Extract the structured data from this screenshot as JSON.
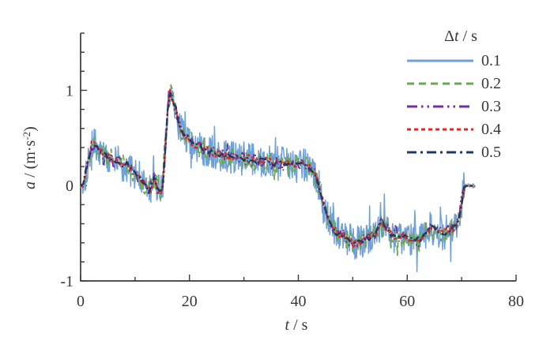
{
  "figure": {
    "background": "#ffffff",
    "axis_color": "#3c3836",
    "text_color": "#3c3836"
  },
  "chart_data": {
    "type": "line",
    "title": "",
    "xlabel": {
      "var": "t",
      "rest": " / s",
      "full": "t / s"
    },
    "ylabel": {
      "var": "a",
      "mid": " / (m·s",
      "sup": "-2",
      "end": ")",
      "full": "a / (m·s⁻²)"
    },
    "xlim": [
      0,
      80
    ],
    "ylim": [
      -1,
      1.6
    ],
    "xticks": [
      0,
      20,
      40,
      60,
      80
    ],
    "xtick_labels": [
      "0",
      "20",
      "40",
      "60",
      "80"
    ],
    "xminor": [
      10,
      30,
      50,
      70
    ],
    "yticks": [
      1,
      0,
      -1
    ],
    "ytick_labels": [
      "1",
      "0",
      "-1"
    ],
    "yminor_step": 0.2,
    "grid": false,
    "legend": {
      "position": "top-right",
      "title": {
        "prefix": "Δ",
        "var": "t",
        "rest": " / s",
        "full": "Δt / s"
      }
    },
    "series": [
      {
        "label": "0.1",
        "delta_t_s": 0.1,
        "color": "#6FA0D8",
        "line_style": "solid",
        "noise_amplitude": 0.18
      },
      {
        "label": "0.2",
        "delta_t_s": 0.2,
        "color": "#6AA84F",
        "line_style": "dashed",
        "noise_amplitude": 0.105
      },
      {
        "label": "0.3",
        "delta_t_s": 0.3,
        "color": "#7030A0",
        "line_style": "dash-dot-dot",
        "noise_amplitude": 0.065
      },
      {
        "label": "0.4",
        "delta_t_s": 0.4,
        "color": "#E8241E",
        "line_style": "short-dash",
        "noise_amplitude": 0.045
      },
      {
        "label": "0.5",
        "delta_t_s": 0.5,
        "color": "#1F3864",
        "line_style": "dash-dot",
        "noise_amplitude": 0.028
      }
    ],
    "t_end_s": 72.5,
    "mean_signal_keypoints": [
      [
        0,
        0
      ],
      [
        0.5,
        0.02
      ],
      [
        1.2,
        0.22
      ],
      [
        2.3,
        0.45
      ],
      [
        3,
        0.4
      ],
      [
        4,
        0.34
      ],
      [
        5,
        0.3
      ],
      [
        6,
        0.27
      ],
      [
        7,
        0.24
      ],
      [
        8,
        0.21
      ],
      [
        9,
        0.18
      ],
      [
        10,
        0.13
      ],
      [
        11,
        0.07
      ],
      [
        11.8,
        0.0
      ],
      [
        12.6,
        -0.06
      ],
      [
        13.5,
        0.08
      ],
      [
        14.3,
        -0.05
      ],
      [
        15,
        -0.07
      ],
      [
        15.7,
        0.5
      ],
      [
        16.2,
        1.04
      ],
      [
        16.8,
        0.93
      ],
      [
        17.5,
        0.8
      ],
      [
        18.2,
        0.62
      ],
      [
        19,
        0.55
      ],
      [
        20,
        0.48
      ],
      [
        21,
        0.44
      ],
      [
        22.5,
        0.38
      ],
      [
        24,
        0.35
      ],
      [
        26,
        0.32
      ],
      [
        28,
        0.3
      ],
      [
        30,
        0.28
      ],
      [
        33,
        0.26
      ],
      [
        36,
        0.23
      ],
      [
        39,
        0.22
      ],
      [
        41.5,
        0.21
      ],
      [
        42.6,
        0.17
      ],
      [
        43.5,
        0.04
      ],
      [
        44.5,
        -0.16
      ],
      [
        45.5,
        -0.33
      ],
      [
        46.5,
        -0.44
      ],
      [
        47.5,
        -0.51
      ],
      [
        49,
        -0.56
      ],
      [
        50.2,
        -0.6
      ],
      [
        51.5,
        -0.58
      ],
      [
        53,
        -0.55
      ],
      [
        54.2,
        -0.5
      ],
      [
        55.4,
        -0.38
      ],
      [
        56.2,
        -0.44
      ],
      [
        57.2,
        -0.52
      ],
      [
        58.5,
        -0.54
      ],
      [
        60,
        -0.55
      ],
      [
        61.2,
        -0.57
      ],
      [
        62.2,
        -0.6
      ],
      [
        62.8,
        -0.54
      ],
      [
        63.6,
        -0.48
      ],
      [
        64.6,
        -0.44
      ],
      [
        65.6,
        -0.48
      ],
      [
        66.6,
        -0.51
      ],
      [
        67.5,
        -0.48
      ],
      [
        68.4,
        -0.45
      ],
      [
        69.2,
        -0.39
      ],
      [
        69.8,
        -0.27
      ],
      [
        70.2,
        -0.1
      ],
      [
        70.5,
        -0.01
      ],
      [
        70.7,
        0
      ],
      [
        72.5,
        0
      ]
    ]
  }
}
